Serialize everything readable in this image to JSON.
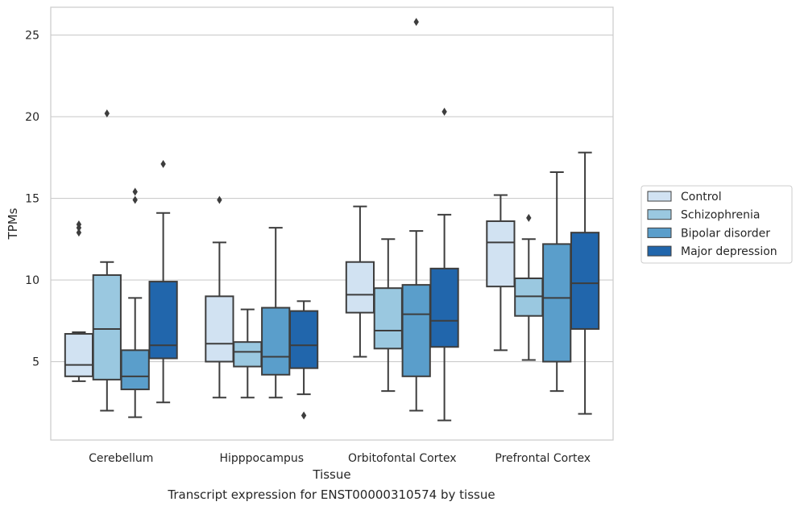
{
  "caption": "Transcript expression for ENST00000310574 by tissue",
  "chart_data": {
    "type": "box",
    "xlabel": "Tissue",
    "ylabel": "TPMs",
    "ylim": [
      0.2,
      26.7
    ],
    "yticks": [
      5,
      10,
      15,
      20,
      25
    ],
    "grid": "horizontal",
    "legend_position": "right (outside plot)",
    "categories": [
      "Cerebellum",
      "Hipppocampus",
      "Orbitofontal Cortex",
      "Prefrontal Cortex"
    ],
    "series": [
      {
        "name": "Control",
        "color": "#d1e2f2",
        "boxes": [
          {
            "whislo": 3.8,
            "q1": 4.1,
            "med": 4.8,
            "q3": 6.7,
            "whishi": 6.8,
            "fliers": [
              13.4,
              13.2,
              12.9
            ]
          },
          {
            "whislo": 2.8,
            "q1": 5.0,
            "med": 6.1,
            "q3": 9.0,
            "whishi": 12.3,
            "fliers": [
              14.9
            ]
          },
          {
            "whislo": 5.3,
            "q1": 8.0,
            "med": 9.1,
            "q3": 11.1,
            "whishi": 14.5,
            "fliers": []
          },
          {
            "whislo": 5.7,
            "q1": 9.6,
            "med": 12.3,
            "q3": 13.6,
            "whishi": 15.2,
            "fliers": []
          }
        ]
      },
      {
        "name": "Schizophrenia",
        "color": "#9ac8e0",
        "boxes": [
          {
            "whislo": 2.0,
            "q1": 3.9,
            "med": 7.0,
            "q3": 10.3,
            "whishi": 11.1,
            "fliers": [
              20.2
            ]
          },
          {
            "whislo": 2.8,
            "q1": 4.7,
            "med": 5.6,
            "q3": 6.2,
            "whishi": 8.2,
            "fliers": []
          },
          {
            "whislo": 3.2,
            "q1": 5.8,
            "med": 6.9,
            "q3": 9.5,
            "whishi": 12.5,
            "fliers": []
          },
          {
            "whislo": 5.1,
            "q1": 7.8,
            "med": 9.0,
            "q3": 10.1,
            "whishi": 12.5,
            "fliers": [
              13.8
            ]
          }
        ]
      },
      {
        "name": "Bipolar disorder",
        "color": "#5a9ecb",
        "boxes": [
          {
            "whislo": 1.6,
            "q1": 3.3,
            "med": 4.1,
            "q3": 5.7,
            "whishi": 8.9,
            "fliers": [
              15.4,
              14.9
            ]
          },
          {
            "whislo": 2.8,
            "q1": 4.2,
            "med": 5.3,
            "q3": 8.3,
            "whishi": 13.2,
            "fliers": []
          },
          {
            "whislo": 2.0,
            "q1": 4.1,
            "med": 7.9,
            "q3": 9.7,
            "whishi": 13.0,
            "fliers": [
              25.8
            ]
          },
          {
            "whislo": 3.2,
            "q1": 5.0,
            "med": 8.9,
            "q3": 12.2,
            "whishi": 16.6,
            "fliers": []
          }
        ]
      },
      {
        "name": "Major depression",
        "color": "#2166ac",
        "boxes": [
          {
            "whislo": 2.5,
            "q1": 5.2,
            "med": 6.0,
            "q3": 9.9,
            "whishi": 14.1,
            "fliers": [
              17.1
            ]
          },
          {
            "whislo": 3.0,
            "q1": 4.6,
            "med": 6.0,
            "q3": 8.1,
            "whishi": 8.7,
            "fliers": [
              1.7
            ]
          },
          {
            "whislo": 1.4,
            "q1": 5.9,
            "med": 7.5,
            "q3": 10.7,
            "whishi": 14.0,
            "fliers": [
              20.3
            ]
          },
          {
            "whislo": 1.8,
            "q1": 7.0,
            "med": 9.8,
            "q3": 12.9,
            "whishi": 17.8,
            "fliers": []
          }
        ]
      }
    ]
  }
}
